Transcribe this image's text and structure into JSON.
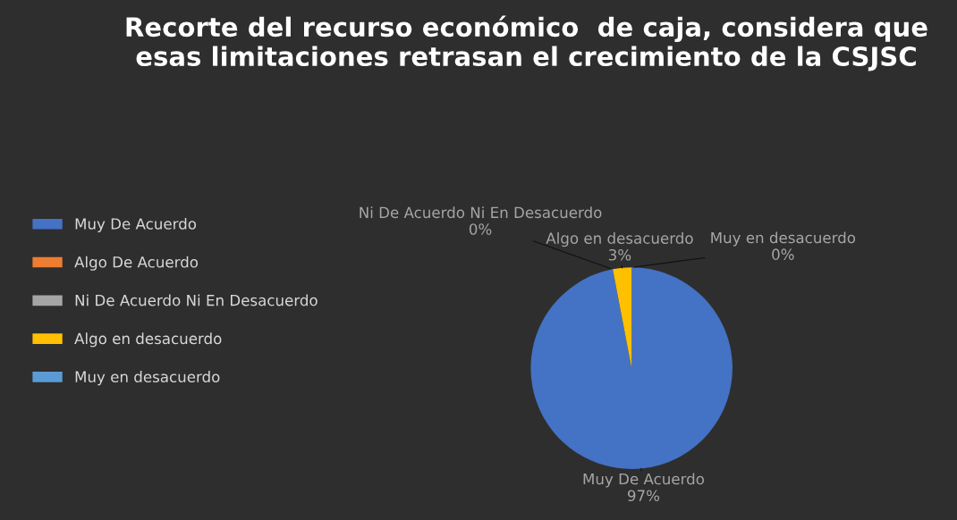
{
  "chart_data": {
    "type": "pie",
    "title": "Recorte del recurso económico  de caja, considera que esas limitaciones retrasan el crecimiento de la CSJSC",
    "categories": [
      "Muy De Acuerdo",
      "Algo De Acuerdo",
      "Ni De Acuerdo Ni En Desacuerdo",
      "Algo en desacuerdo",
      "Muy en desacuerdo"
    ],
    "values": [
      97,
      0,
      0,
      3,
      0
    ],
    "colors": [
      "#4472c4",
      "#ed7d31",
      "#a5a5a5",
      "#ffc000",
      "#5b9bd5"
    ],
    "value_labels": [
      "97%",
      null,
      "0%",
      "3%",
      "0%"
    ],
    "legend": "left"
  }
}
